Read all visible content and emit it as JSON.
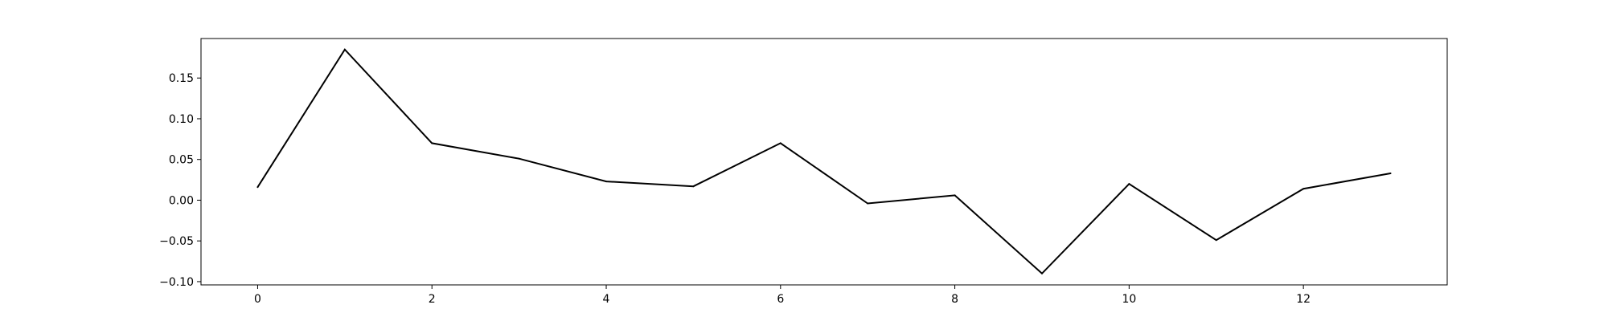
{
  "chart_data": {
    "type": "line",
    "title": "",
    "xlabel": "",
    "ylabel": "",
    "x": [
      0,
      1,
      2,
      3,
      4,
      5,
      6,
      7,
      8,
      9,
      10,
      11,
      12,
      13
    ],
    "series": [
      {
        "values": [
          0.016,
          0.185,
          0.07,
          0.051,
          0.023,
          0.017,
          0.07,
          -0.004,
          0.006,
          -0.09,
          0.02,
          -0.049,
          0.014,
          0.033
        ],
        "color": "#000000"
      }
    ],
    "xlim": [
      -0.65,
      13.65
    ],
    "ylim": [
      -0.104,
      0.1985
    ],
    "x_ticks": [
      0,
      2,
      4,
      6,
      8,
      10,
      12
    ],
    "x_tick_labels": [
      "0",
      "2",
      "4",
      "6",
      "8",
      "10",
      "12"
    ],
    "y_ticks": [
      -0.1,
      -0.05,
      0.0,
      0.05,
      0.1,
      0.15
    ],
    "y_tick_labels": [
      "−0.10",
      "−0.05",
      "0.00",
      "0.05",
      "0.10",
      "0.15"
    ],
    "grid": false,
    "legend": "none"
  }
}
